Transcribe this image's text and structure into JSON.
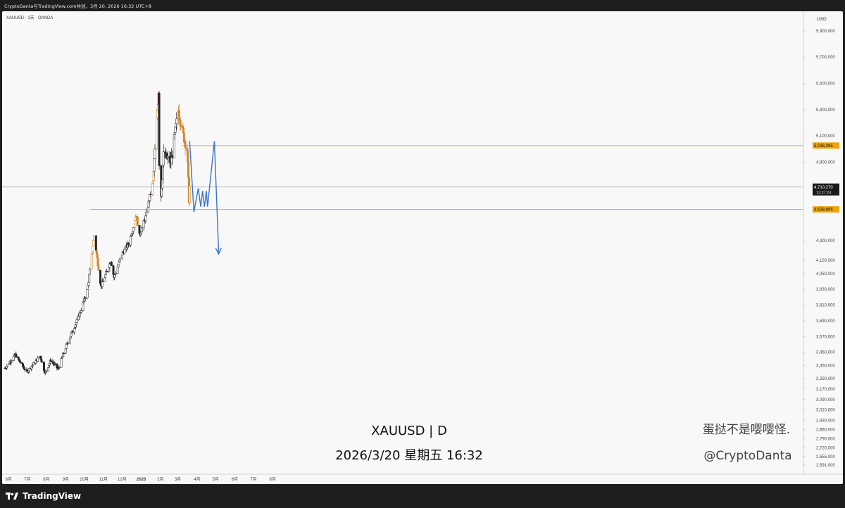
{
  "window": {
    "top_bar": "CryptoDanta与TradingView.com共创，3月 20, 2026 16:32 UTC+8",
    "symbol_line": "XAUUSD · 1天 · OANDA",
    "currency": "USD",
    "brand": "TradingView",
    "brand_logo_icon": "tradingview-logo-icon"
  },
  "overlay": {
    "title": "XAUUSD | D",
    "datetime": "2026/3/20 星期五 16:32",
    "author_cn": "蛋挞不是嘤嘤怪.",
    "author_handle": "@CryptoDanta"
  },
  "chart_data": {
    "type": "candlestick",
    "symbol": "XAUUSD",
    "interval": "1天",
    "exchange": "OANDA",
    "ylim": [
      2520,
      6050
    ],
    "y_ticks": [
      5900000,
      5700000,
      5500000,
      5300000,
      5100000,
      4900000,
      4300000,
      4150000,
      4050000,
      3930000,
      3810000,
      3690000,
      3570000,
      3450000,
      3350000,
      3250000,
      3170000,
      3090000,
      3010000,
      2930000,
      2860000,
      2790000,
      2720000,
      2655000,
      2591000
    ],
    "y_tick_labels": [
      "5,900,000",
      "5,700,000",
      "5,500,000",
      "5,300,000",
      "5,100,000",
      "4,900,000",
      "4,300,000",
      "4,150,000",
      "4,050,000",
      "3,930,000",
      "3,810,000",
      "3,690,000",
      "3,570,000",
      "3,450,000",
      "3,350,000",
      "3,250,000",
      "3,170,000",
      "3,090,000",
      "3,010,000",
      "2,930,000",
      "2,860,000",
      "2,790,000",
      "2,720,000",
      "2,655,000",
      "2,591,000"
    ],
    "x_labels": [
      "6月",
      "7月",
      "8月",
      "9月",
      "10月",
      "11月",
      "12月",
      "2026",
      "2月",
      "3月",
      "4月",
      "5月",
      "6月",
      "7月",
      "8月"
    ],
    "current_price": {
      "label": "4,710,270",
      "countdown": "12:27:23",
      "value": 4710
    },
    "levels": [
      {
        "label": "5,026,395",
        "value": 5026,
        "color": "#f0a30a"
      },
      {
        "label": "4,538,895",
        "value": 4539,
        "color": "#f0a30a"
      }
    ],
    "keypoints": [
      {
        "date": "2025-05-26",
        "price": 3330
      },
      {
        "date": "2025-06-12",
        "price": 3430
      },
      {
        "date": "2025-06-30",
        "price": 3300
      },
      {
        "date": "2025-07-22",
        "price": 3420
      },
      {
        "date": "2025-07-30",
        "price": 3290
      },
      {
        "date": "2025-08-08",
        "price": 3390
      },
      {
        "date": "2025-08-20",
        "price": 3320
      },
      {
        "date": "2025-09-02",
        "price": 3500
      },
      {
        "date": "2025-09-22",
        "price": 3720
      },
      {
        "date": "2025-10-06",
        "price": 3920
      },
      {
        "date": "2025-10-17",
        "price": 4340
      },
      {
        "date": "2025-10-28",
        "price": 3950
      },
      {
        "date": "2025-11-13",
        "price": 4150
      },
      {
        "date": "2025-11-18",
        "price": 4020
      },
      {
        "date": "2025-12-01",
        "price": 4200
      },
      {
        "date": "2025-12-12",
        "price": 4280
      },
      {
        "date": "2025-12-24",
        "price": 4500
      },
      {
        "date": "2025-12-29",
        "price": 4340
      },
      {
        "date": "2026-01-08",
        "price": 4480
      },
      {
        "date": "2026-01-20",
        "price": 4750
      },
      {
        "date": "2026-01-29",
        "price": 5450
      },
      {
        "date": "2026-01-30",
        "price": 4900
      },
      {
        "date": "2026-02-02",
        "price": 4650
      },
      {
        "date": "2026-02-06",
        "price": 4950
      },
      {
        "date": "2026-02-18",
        "price": 4900
      },
      {
        "date": "2026-03-02",
        "price": 5300
      },
      {
        "date": "2026-03-10",
        "price": 5100
      },
      {
        "date": "2026-03-16",
        "price": 5000
      },
      {
        "date": "2026-03-19",
        "price": 4620
      },
      {
        "date": "2026-03-20",
        "price": 4710
      }
    ],
    "projection": {
      "color": "#3a73d1",
      "points": [
        {
          "date": "2026-03-20",
          "price": 5060
        },
        {
          "date": "2026-03-27",
          "price": 4520
        },
        {
          "date": "2026-04-03",
          "price": 4700
        },
        {
          "date": "2026-04-07",
          "price": 4560
        },
        {
          "date": "2026-04-10",
          "price": 4680
        },
        {
          "date": "2026-04-13",
          "price": 4560
        },
        {
          "date": "2026-04-16",
          "price": 4680
        },
        {
          "date": "2026-04-18",
          "price": 4560
        },
        {
          "date": "2026-04-29",
          "price": 5060
        },
        {
          "date": "2026-05-06",
          "price": 4200
        }
      ]
    }
  }
}
